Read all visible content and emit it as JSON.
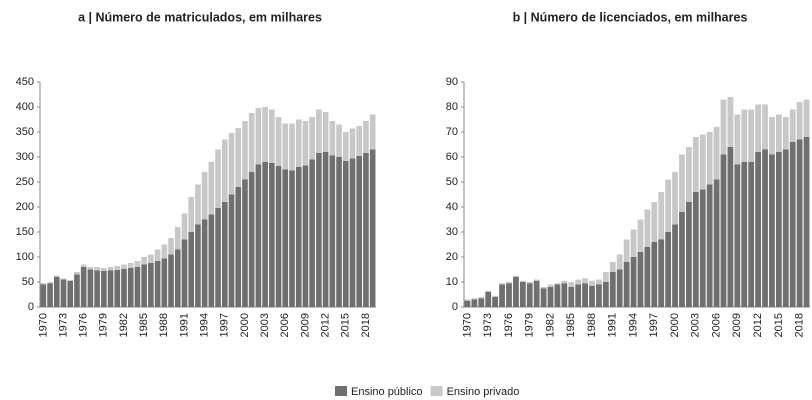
{
  "chart_data": [
    {
      "type": "bar",
      "stacked": true,
      "title": "a | Número de matriculados, em milhares",
      "categories": [
        "1970",
        null,
        null,
        "1973",
        null,
        null,
        "1976",
        null,
        null,
        "1979",
        null,
        null,
        "1982",
        null,
        null,
        "1985",
        null,
        null,
        "1988",
        null,
        null,
        "1991",
        null,
        null,
        "1994",
        null,
        null,
        "1997",
        null,
        null,
        "2000",
        null,
        null,
        "2003",
        null,
        null,
        "2006",
        null,
        null,
        "2009",
        null,
        null,
        "2012",
        null,
        null,
        "2015",
        null,
        null,
        "2018",
        null
      ],
      "series": [
        {
          "name": "Ensino público",
          "color": "#6f6f6f",
          "values": [
            45,
            47,
            60,
            55,
            52,
            65,
            80,
            75,
            73,
            72,
            73,
            74,
            76,
            78,
            80,
            85,
            88,
            92,
            97,
            105,
            115,
            135,
            150,
            165,
            175,
            185,
            198,
            210,
            225,
            240,
            255,
            270,
            285,
            290,
            288,
            282,
            275,
            273,
            280,
            283,
            295,
            308,
            310,
            303,
            300,
            292,
            297,
            302,
            308,
            315
          ]
        },
        {
          "name": "Ensino privado",
          "color": "#c8c8c8",
          "values": [
            3,
            3,
            3,
            2,
            2,
            5,
            5,
            5,
            7,
            6,
            7,
            8,
            9,
            10,
            12,
            15,
            17,
            23,
            28,
            33,
            45,
            52,
            70,
            80,
            95,
            105,
            117,
            125,
            123,
            118,
            117,
            118,
            113,
            110,
            107,
            98,
            92,
            94,
            95,
            89,
            85,
            87,
            80,
            69,
            65,
            58,
            60,
            60,
            64,
            70
          ]
        }
      ],
      "ylim": [
        0,
        450
      ],
      "yticks": [
        0,
        50,
        100,
        150,
        200,
        250,
        300,
        350,
        400,
        450
      ]
    },
    {
      "type": "bar",
      "stacked": true,
      "title": "b | Número de licenciados, em milhares",
      "categories": [
        "1970",
        null,
        null,
        "1973",
        null,
        null,
        "1976",
        null,
        null,
        "1979",
        null,
        null,
        "1982",
        null,
        null,
        "1985",
        null,
        null,
        "1988",
        null,
        null,
        "1991",
        null,
        null,
        "1994",
        null,
        null,
        "1997",
        null,
        null,
        "2000",
        null,
        null,
        "2003",
        null,
        null,
        "2006",
        null,
        null,
        "2009",
        null,
        null,
        "2012",
        null,
        null,
        "2015",
        null,
        null,
        "2018",
        null
      ],
      "series": [
        {
          "values": [
            2.5,
            3,
            3.5,
            6,
            4,
            9,
            9.5,
            12,
            10,
            9.5,
            10.5,
            7.5,
            8,
            9,
            9.5,
            8,
            9,
            9.5,
            8.5,
            9,
            10,
            14,
            15,
            18,
            20,
            22,
            24,
            26,
            27,
            30,
            33,
            38,
            42,
            46,
            47,
            49,
            51,
            61,
            64,
            57,
            58,
            58,
            62,
            63,
            61,
            62,
            63,
            66,
            67,
            68
          ]
        },
        {
          "values": [
            0.5,
            0.5,
            0.5,
            0.5,
            0.5,
            0.5,
            0.5,
            0.5,
            0.5,
            0.5,
            0.5,
            0.5,
            1,
            0.5,
            1,
            2,
            2,
            2,
            2,
            2,
            4,
            4,
            6,
            9,
            11,
            13,
            15,
            16,
            19,
            21,
            21,
            23,
            22,
            22,
            22,
            21,
            21,
            22,
            20,
            20,
            21,
            21,
            19,
            18,
            15,
            15,
            13,
            13,
            15,
            15
          ]
        }
      ],
      "ylim": [
        0,
        90
      ],
      "yticks": [
        0,
        10,
        20,
        30,
        40,
        50,
        60,
        70,
        80,
        90
      ]
    }
  ]
}
